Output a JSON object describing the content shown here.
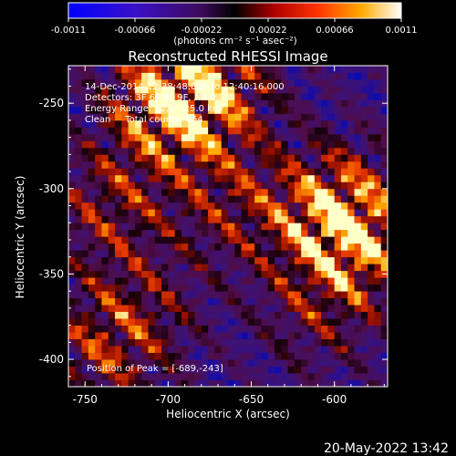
{
  "page_date": "20-May-2022 13:42",
  "colorbar": {
    "ticks": [
      "-0.0011",
      "-0.00066",
      "-0.00022",
      "0.00022",
      "0.00066",
      "0.0011"
    ],
    "units": "(photons cm⁻² s⁻¹ asec⁻²)",
    "range": [
      -0.0011,
      0.0011
    ]
  },
  "chart_data": {
    "type": "heatmap",
    "title": "Reconstructed RHESSI Image",
    "xlabel": "Heliocentric X (arcsec)",
    "ylabel": "Heliocentric Y (arcsec)",
    "xlim": [
      -760,
      -568
    ],
    "ylim": [
      -416,
      -228
    ],
    "xticks": [
      "-750",
      "-700",
      "-650",
      "-600"
    ],
    "yticks": [
      "-250",
      "-300",
      "-350",
      "-400"
    ],
    "colormap": "blue-purple-red-yellow-white",
    "annotations": [
      "14-Dec-2014 12:38:48.000 to 12:40:16.000",
      "Detectors: 3F 6F 8F 9F, Att 0",
      "Energy Range: 12.0 - 25.0 keV",
      "Clean     Total counts: 654."
    ],
    "peak_label": "Position of Peak = [-689,-243]",
    "peak_position": [
      -689,
      -243
    ],
    "bright_regions": [
      {
        "x": -700,
        "y": -250,
        "level": 1.0
      },
      {
        "x": -675,
        "y": -240,
        "level": 0.8
      },
      {
        "x": -590,
        "y": -330,
        "level": 0.95
      },
      {
        "x": -600,
        "y": -310,
        "level": 0.7
      },
      {
        "x": -735,
        "y": -310,
        "level": 0.55
      },
      {
        "x": -660,
        "y": -310,
        "level": 0.5
      },
      {
        "x": -720,
        "y": -375,
        "level": 0.5
      },
      {
        "x": -745,
        "y": -400,
        "level": 0.45
      },
      {
        "x": -610,
        "y": -375,
        "level": 0.35
      }
    ]
  }
}
